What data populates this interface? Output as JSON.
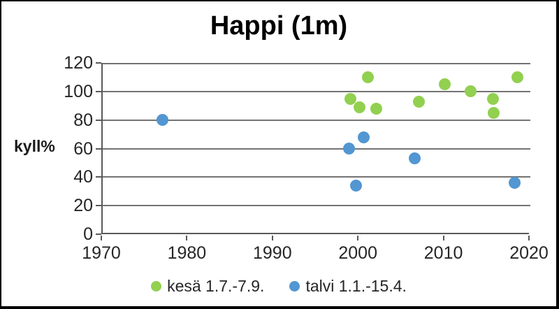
{
  "frame": {
    "background": "#ffffff",
    "border_color": "#000000"
  },
  "chart_data": {
    "type": "scatter",
    "title": "Happi (1m)",
    "ylabel": "kyll%",
    "xlabel": "",
    "xlim": [
      1970,
      2020
    ],
    "ylim": [
      0,
      120
    ],
    "x_ticks": [
      1970,
      1980,
      1990,
      2000,
      2010,
      2020
    ],
    "y_ticks": [
      0,
      20,
      40,
      60,
      80,
      100,
      120
    ],
    "grid": true,
    "legend_position": "bottom",
    "colors": {
      "gridline": "#737373",
      "axis": "#595959",
      "tick_text": "#262626",
      "title_text": "#000000"
    },
    "series": [
      {
        "name": "kesä 1.7.-7.9.",
        "color": "#92d050",
        "points": [
          [
            1999,
            95
          ],
          [
            2000,
            89
          ],
          [
            2001,
            110
          ],
          [
            2002,
            88
          ],
          [
            2007,
            93
          ],
          [
            2010,
            105
          ],
          [
            2013,
            100
          ],
          [
            2015.6,
            95
          ],
          [
            2015.7,
            85
          ],
          [
            2018.5,
            110
          ]
        ]
      },
      {
        "name": "talvi 1.1.-15.4.",
        "color": "#5296d2",
        "points": [
          [
            1977,
            80
          ],
          [
            1998.8,
            60
          ],
          [
            1999.6,
            34
          ],
          [
            2000.5,
            68
          ],
          [
            2006.5,
            53
          ],
          [
            2018.2,
            36
          ]
        ]
      }
    ]
  }
}
